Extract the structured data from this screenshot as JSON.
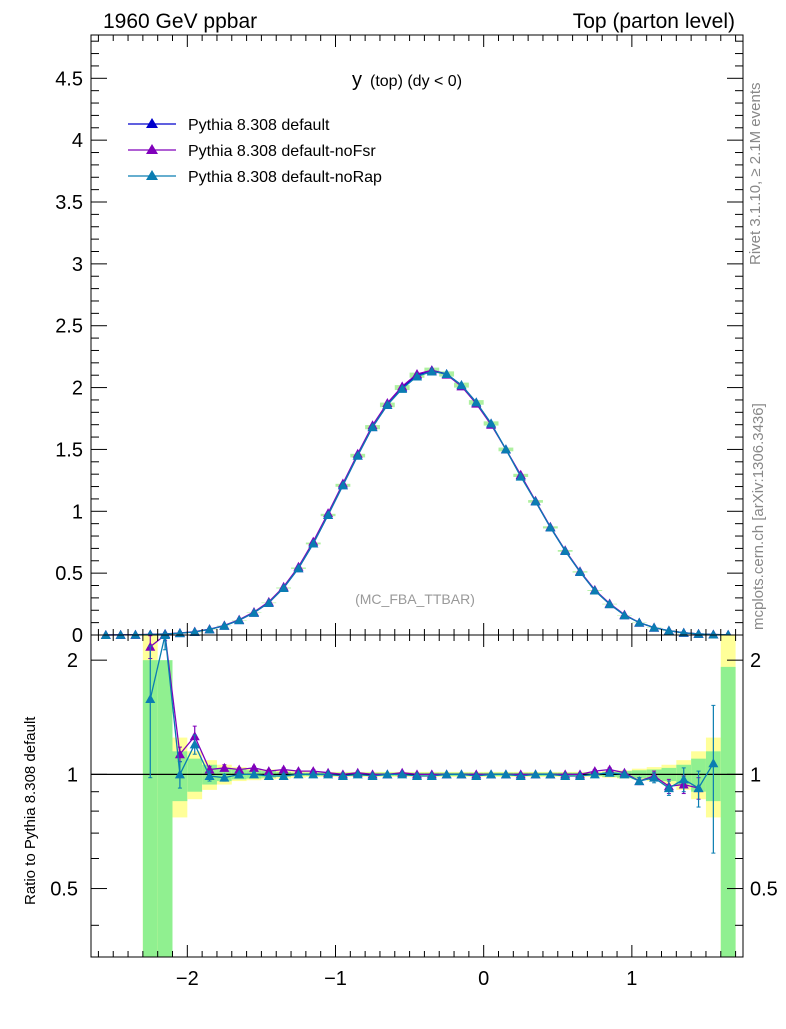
{
  "header": {
    "left": "1960 GeV ppbar",
    "right": "Top (parton level)"
  },
  "side_labels": {
    "rivet": "Rivet 3.1.10, ≥ 2.1M events",
    "mcplots": "mcplots.cern.ch [arXiv:1306.3436]"
  },
  "chart_data": [
    {
      "type": "line",
      "title": "y (top) (dy < 0)",
      "title_main": "y",
      "title_sub": "(top) (dy < 0)",
      "analysis_label": "(MC_FBA_TTBAR)",
      "xlim": [
        -2.65,
        1.75
      ],
      "ylim": [
        0,
        4.85
      ],
      "yticks": [
        "0",
        "0.5",
        "1",
        "1.5",
        "2",
        "2.5",
        "3",
        "3.5",
        "4",
        "4.5"
      ],
      "ytick_values": [
        0,
        0.5,
        1,
        1.5,
        2,
        2.5,
        3,
        3.5,
        4,
        4.5
      ],
      "legend_position": "top-left",
      "x": [
        -2.55,
        -2.45,
        -2.35,
        -2.25,
        -2.15,
        -2.05,
        -1.95,
        -1.85,
        -1.75,
        -1.65,
        -1.55,
        -1.45,
        -1.35,
        -1.25,
        -1.15,
        -1.05,
        -0.95,
        -0.85,
        -0.75,
        -0.65,
        -0.55,
        -0.45,
        -0.35,
        -0.25,
        -0.15,
        -0.05,
        0.05,
        0.15,
        0.25,
        0.35,
        0.45,
        0.55,
        0.65,
        0.75,
        0.85,
        0.95,
        1.05,
        1.15,
        1.25,
        1.35,
        1.45,
        1.55,
        1.65
      ],
      "series": [
        {
          "name": "Pythia 8.308 default",
          "color": "#0000cc",
          "values": [
            0.0003,
            0.0008,
            0.002,
            0.004,
            0.008,
            0.015,
            0.025,
            0.045,
            0.075,
            0.12,
            0.18,
            0.26,
            0.38,
            0.54,
            0.74,
            0.97,
            1.21,
            1.45,
            1.68,
            1.86,
            2.0,
            2.1,
            2.14,
            2.11,
            2.02,
            1.88,
            1.71,
            1.5,
            1.29,
            1.08,
            0.87,
            0.68,
            0.51,
            0.36,
            0.25,
            0.16,
            0.1,
            0.06,
            0.035,
            0.018,
            0.009,
            0.004,
            0.002
          ]
        },
        {
          "name": "Pythia 8.308 default-noFsr",
          "color": "#8000bb",
          "values": [
            0.0004,
            0.0009,
            0.0022,
            0.0045,
            0.009,
            0.016,
            0.027,
            0.047,
            0.078,
            0.124,
            0.186,
            0.268,
            0.39,
            0.552,
            0.755,
            0.985,
            1.225,
            1.465,
            1.695,
            1.875,
            2.01,
            2.11,
            2.14,
            2.105,
            2.01,
            1.87,
            1.7,
            1.5,
            1.295,
            1.085,
            0.875,
            0.685,
            0.515,
            0.365,
            0.255,
            0.165,
            0.1,
            0.06,
            0.035,
            0.018,
            0.009,
            0.004,
            0.002
          ]
        },
        {
          "name": "Pythia 8.308 default-noRap",
          "color": "#0a7db2",
          "values": [
            0.0003,
            0.0008,
            0.002,
            0.004,
            0.008,
            0.015,
            0.025,
            0.045,
            0.075,
            0.12,
            0.18,
            0.26,
            0.38,
            0.54,
            0.74,
            0.97,
            1.21,
            1.45,
            1.68,
            1.86,
            1.99,
            2.09,
            2.13,
            2.11,
            2.02,
            1.88,
            1.71,
            1.5,
            1.28,
            1.08,
            0.87,
            0.68,
            0.51,
            0.36,
            0.25,
            0.16,
            0.1,
            0.06,
            0.035,
            0.018,
            0.009,
            0.004,
            0.002
          ]
        }
      ]
    },
    {
      "type": "line",
      "ylabel": "Ratio to Pythia 8.308 default",
      "xlim": [
        -2.65,
        1.75
      ],
      "ylim": [
        0.33,
        2.33
      ],
      "xticks": [
        "−2",
        "−1",
        "0",
        "1"
      ],
      "xtick_values": [
        -2,
        -1,
        0,
        1
      ],
      "yticks": [
        "0.5",
        "1",
        "2"
      ],
      "ytick_values": [
        0.5,
        1,
        2
      ],
      "reference_line": 1,
      "band_x": [
        -2.25,
        -2.15,
        -2.05,
        -1.95,
        -1.85,
        -1.75,
        -1.65,
        -1.55,
        -1.45,
        -1.35,
        -1.25,
        -1.15,
        -1.05,
        -0.95,
        -0.85,
        -0.75,
        -0.65,
        -0.55,
        -0.45,
        -0.35,
        -0.25,
        -0.15,
        -0.05,
        0.05,
        0.15,
        0.25,
        0.35,
        0.45,
        0.55,
        0.65,
        0.75,
        0.85,
        0.95,
        1.05,
        1.15,
        1.25,
        1.35,
        1.45,
        1.55,
        1.65
      ],
      "band_inner_lo": [
        0.33,
        0.33,
        0.85,
        0.9,
        0.94,
        0.96,
        0.97,
        0.975,
        0.98,
        0.985,
        0.99,
        0.99,
        0.99,
        0.99,
        0.99,
        0.99,
        0.99,
        0.99,
        0.99,
        0.99,
        0.99,
        0.99,
        0.99,
        0.99,
        0.99,
        0.99,
        0.99,
        0.99,
        0.99,
        0.99,
        0.99,
        0.985,
        0.98,
        0.975,
        0.97,
        0.96,
        0.94,
        0.9,
        0.85,
        0.33
      ],
      "band_inner_hi": [
        2.0,
        2.0,
        1.15,
        1.1,
        1.06,
        1.04,
        1.03,
        1.025,
        1.02,
        1.015,
        1.01,
        1.01,
        1.01,
        1.01,
        1.01,
        1.01,
        1.01,
        1.01,
        1.01,
        1.01,
        1.01,
        1.01,
        1.01,
        1.01,
        1.01,
        1.01,
        1.01,
        1.01,
        1.01,
        1.01,
        1.01,
        1.015,
        1.02,
        1.025,
        1.03,
        1.04,
        1.06,
        1.1,
        1.15,
        1.92
      ],
      "band_outer_lo": [
        0.33,
        0.33,
        0.77,
        0.86,
        0.91,
        0.94,
        0.96,
        0.965,
        0.97,
        0.975,
        0.98,
        0.985,
        0.985,
        0.985,
        0.985,
        0.985,
        0.985,
        0.985,
        0.985,
        0.985,
        0.985,
        0.985,
        0.985,
        0.985,
        0.985,
        0.985,
        0.985,
        0.985,
        0.985,
        0.985,
        0.985,
        0.98,
        0.975,
        0.97,
        0.96,
        0.94,
        0.91,
        0.86,
        0.77,
        0.33
      ],
      "band_outer_hi": [
        2.33,
        1.65,
        1.25,
        1.15,
        1.09,
        1.06,
        1.045,
        1.035,
        1.03,
        1.025,
        1.02,
        1.015,
        1.015,
        1.015,
        1.015,
        1.015,
        1.015,
        1.015,
        1.015,
        1.015,
        1.015,
        1.015,
        1.015,
        1.015,
        1.015,
        1.015,
        1.015,
        1.015,
        1.015,
        1.015,
        1.015,
        1.02,
        1.025,
        1.035,
        1.045,
        1.06,
        1.09,
        1.15,
        1.25,
        2.33
      ],
      "series": [
        {
          "name": "Pythia 8.308 default-noFsr",
          "color": "#8000bb",
          "x": [
            -2.25,
            -2.15,
            -2.05,
            -1.95,
            -1.85,
            -1.75,
            -1.65,
            -1.55,
            -1.45,
            -1.35,
            -1.25,
            -1.15,
            -1.05,
            -0.95,
            -0.85,
            -0.75,
            -0.65,
            -0.55,
            -0.45,
            -0.35,
            -0.25,
            -0.15,
            -0.05,
            0.05,
            0.15,
            0.25,
            0.35,
            0.45,
            0.55,
            0.65,
            0.75,
            0.85,
            0.95,
            1.05,
            1.15,
            1.25,
            1.35,
            1.45,
            1.55,
            1.65
          ],
          "values": [
            2.17,
            2.35,
            1.13,
            1.26,
            1.03,
            1.04,
            1.03,
            1.04,
            1.02,
            1.03,
            1.02,
            1.02,
            1.01,
            1.0,
            1.01,
            1.0,
            1.0,
            1.01,
            1.0,
            1.0,
            1.0,
            1.0,
            1.0,
            1.0,
            1.0,
            1.0,
            1.0,
            1.0,
            1.0,
            1.0,
            1.02,
            1.03,
            1.01,
            0.96,
            0.99,
            0.93,
            0.94,
            0.92,
            null,
            null
          ],
          "errors": [
            0.15,
            0.1,
            0.05,
            0.08,
            0.02,
            0.02,
            0.01,
            0.01,
            0.01,
            0.01,
            0.01,
            0.01,
            0.005,
            0.005,
            0.005,
            0.005,
            0.005,
            0.005,
            0.005,
            0.005,
            0.005,
            0.005,
            0.005,
            0.005,
            0.005,
            0.005,
            0.005,
            0.005,
            0.005,
            0.005,
            0.01,
            0.01,
            0.01,
            0.02,
            0.03,
            0.04,
            0.05,
            0.06,
            0,
            0
          ]
        },
        {
          "name": "Pythia 8.308 default-noRap",
          "color": "#0a7db2",
          "x": [
            -2.25,
            -2.15,
            -2.05,
            -1.95,
            -1.85,
            -1.75,
            -1.65,
            -1.55,
            -1.45,
            -1.35,
            -1.25,
            -1.15,
            -1.05,
            -0.95,
            -0.85,
            -0.75,
            -0.65,
            -0.55,
            -0.45,
            -0.35,
            -0.25,
            -0.15,
            -0.05,
            0.05,
            0.15,
            0.25,
            0.35,
            0.45,
            0.55,
            0.65,
            0.75,
            0.85,
            0.95,
            1.05,
            1.15,
            1.25,
            1.35,
            1.45,
            1.55,
            1.65
          ],
          "values": [
            1.58,
            2.33,
            1.0,
            1.2,
            0.99,
            0.98,
            1.0,
            1.0,
            0.99,
            0.99,
            1.0,
            1.0,
            1.0,
            0.99,
            1.0,
            0.99,
            1.0,
            1.0,
            0.99,
            0.99,
            1.0,
            1.0,
            0.99,
            1.0,
            1.0,
            0.99,
            1.0,
            1.0,
            0.99,
            0.99,
            1.0,
            1.01,
            1.0,
            0.96,
            0.98,
            0.92,
            0.97,
            0.92,
            1.07,
            null
          ],
          "errors": [
            0.6,
            0.2,
            0.08,
            0.07,
            0.03,
            0.02,
            0.01,
            0.01,
            0.01,
            0.01,
            0.005,
            0.005,
            0.005,
            0.005,
            0.005,
            0.005,
            0.005,
            0.005,
            0.005,
            0.005,
            0.005,
            0.005,
            0.005,
            0.005,
            0.005,
            0.005,
            0.005,
            0.005,
            0.005,
            0.005,
            0.01,
            0.01,
            0.01,
            0.02,
            0.03,
            0.04,
            0.07,
            0.1,
            0.45,
            0
          ]
        }
      ]
    }
  ]
}
